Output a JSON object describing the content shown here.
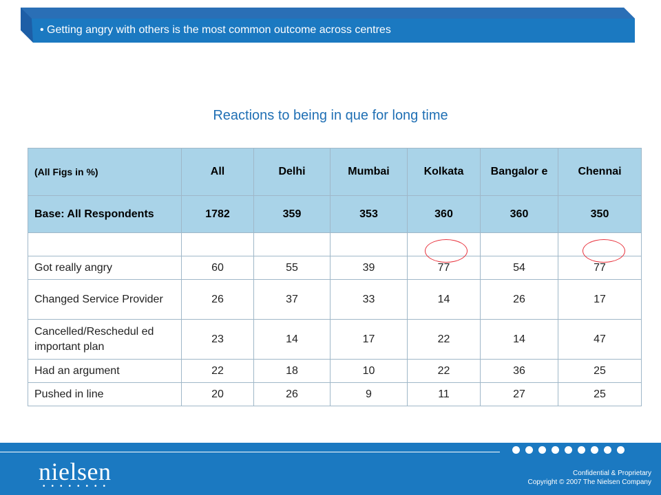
{
  "banner": {
    "text": "• Getting angry with others is the most common outcome across centres"
  },
  "title": "Reactions to being in que for long time",
  "table": {
    "header": [
      "(All Figs in %)",
      "All",
      "Delhi",
      "Mumbai",
      "Kolkata",
      "Bangalor e",
      "Chennai"
    ],
    "base": [
      "Base: All Respondents",
      "1782",
      "359",
      "353",
      "360",
      "360",
      "350"
    ],
    "rows": [
      {
        "label": "Got really angry",
        "values": [
          "60",
          "55",
          "39",
          "77",
          "54",
          "77"
        ]
      },
      {
        "label": "Changed Service Provider",
        "values": [
          "26",
          "37",
          "33",
          "14",
          "26",
          "17"
        ]
      },
      {
        "label": "Cancelled/Reschedul ed important plan",
        "values": [
          "23",
          "14",
          "17",
          "22",
          "14",
          "47"
        ]
      },
      {
        "label": "Had an argument",
        "values": [
          "22",
          "18",
          "10",
          "22",
          "36",
          "25"
        ]
      },
      {
        "label": "Pushed in line",
        "values": [
          "20",
          "26",
          "9",
          "11",
          "27",
          "25"
        ]
      }
    ]
  },
  "footer": {
    "logo": "nielsen",
    "confidential": "Confidential & Proprietary",
    "copyright": "Copyright © 2007 The Nielsen Company"
  },
  "colors": {
    "banner": "#1b5fa8",
    "title": "#1f6fb4",
    "header_fill": "#a9d3e8",
    "circle": "#e8323c",
    "footer": "#1b79c1"
  }
}
